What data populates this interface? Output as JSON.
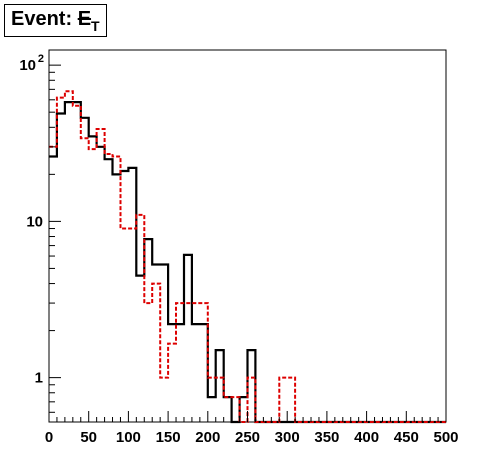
{
  "title": {
    "prefix": "Event: ",
    "symbol": "E",
    "subscript": "T"
  },
  "chart_data": {
    "type": "histogram",
    "title": "Event: E̸T",
    "xlabel": "",
    "ylabel": "",
    "xlim": [
      0,
      500
    ],
    "ylim": [
      0.52,
      125
    ],
    "yscale": "log",
    "grid": false,
    "legend": null,
    "bin_width": 10,
    "x_ticks": [
      "0",
      "50",
      "100",
      "150",
      "200",
      "250",
      "300",
      "350",
      "400",
      "450",
      "500"
    ],
    "y_ticks": [
      {
        "value": 1,
        "label": "1"
      },
      {
        "value": 10,
        "label": "10"
      },
      {
        "value": 100,
        "label": "10",
        "sup": "2"
      }
    ],
    "bin_edges": [
      0,
      10,
      20,
      30,
      40,
      50,
      60,
      70,
      80,
      90,
      100,
      110,
      120,
      130,
      140,
      150,
      160,
      170,
      180,
      190,
      200,
      210,
      220,
      230,
      240,
      250,
      260,
      270,
      280,
      290,
      300,
      310,
      320,
      330,
      340,
      350,
      360,
      370,
      380,
      390,
      400,
      410,
      420,
      430,
      440,
      450,
      460,
      470,
      480,
      490,
      500
    ],
    "series": [
      {
        "style": "solid",
        "color": "#000000",
        "values": [
          26,
          49,
          58,
          58,
          46,
          35,
          30,
          25,
          20,
          21,
          22,
          4.5,
          7.7,
          5.3,
          5.3,
          2.2,
          2.2,
          6.1,
          2.2,
          2.2,
          0.75,
          1.5,
          0.75,
          0,
          0.75,
          1.5,
          0,
          0,
          0,
          0,
          0,
          0,
          0,
          0,
          0,
          0,
          0,
          0,
          0,
          0,
          0,
          0,
          0,
          0,
          0,
          0,
          0,
          0,
          0,
          0
        ]
      },
      {
        "style": "dashed",
        "color": "#dd0000",
        "values": [
          30,
          62,
          68,
          55,
          34,
          29,
          39,
          27,
          26,
          9,
          9,
          11,
          3,
          4,
          1,
          1.65,
          3,
          3,
          3,
          3,
          1,
          1,
          0.75,
          0.75,
          0,
          1,
          0,
          0,
          0,
          1,
          1,
          0,
          0,
          0,
          0,
          0,
          0,
          0,
          0,
          0,
          0,
          0,
          0,
          0,
          0,
          0,
          0,
          0,
          0,
          0
        ]
      }
    ]
  }
}
